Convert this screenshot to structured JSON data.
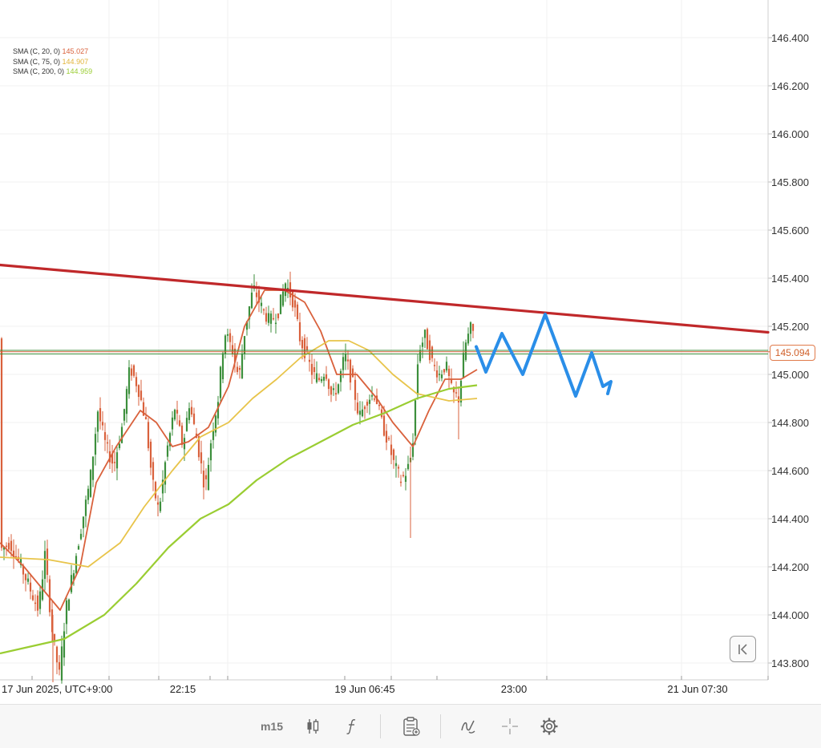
{
  "chart_data": {
    "type": "line",
    "title": "",
    "timeframe": "m15",
    "instrument_price": "145.094",
    "ylim": [
      143.75,
      146.55
    ],
    "y_ticks": [
      "146.400",
      "146.200",
      "146.000",
      "145.800",
      "145.600",
      "145.400",
      "145.200",
      "145.000",
      "144.800",
      "144.600",
      "144.400",
      "144.200",
      "144.000",
      "143.800"
    ],
    "x_labels": [
      "17 Jun 2025, UTC+9:00",
      "22:15",
      "19 Jun 06:45",
      "23:00",
      "21 Jun 07:30"
    ],
    "grid": true,
    "legend": [
      {
        "label": "SMA (C, 20, 0)",
        "value": "145.027",
        "color": "#d9613c"
      },
      {
        "label": "SMA (C, 75, 0)",
        "value": "144.907",
        "color": "#e8c44a"
      },
      {
        "label": "SMA (C, 200, 0)",
        "value": "144.959",
        "color": "#9acd32"
      }
    ],
    "series": [
      {
        "kind": "sma20",
        "color": "#d9613c",
        "points": [
          [
            0,
            144.3
          ],
          [
            30,
            144.2
          ],
          [
            55,
            144.1
          ],
          [
            75,
            144.02
          ],
          [
            100,
            144.2
          ],
          [
            120,
            144.55
          ],
          [
            145,
            144.7
          ],
          [
            175,
            144.85
          ],
          [
            195,
            144.8
          ],
          [
            215,
            144.7
          ],
          [
            235,
            144.72
          ],
          [
            260,
            144.78
          ],
          [
            285,
            144.95
          ],
          [
            305,
            145.2
          ],
          [
            330,
            145.35
          ],
          [
            355,
            145.35
          ],
          [
            380,
            145.3
          ],
          [
            400,
            145.18
          ],
          [
            420,
            145.0
          ],
          [
            445,
            145.0
          ],
          [
            470,
            144.9
          ],
          [
            490,
            144.8
          ],
          [
            515,
            144.7
          ],
          [
            535,
            144.85
          ],
          [
            555,
            144.98
          ],
          [
            575,
            144.98
          ],
          [
            595,
            145.02
          ]
        ]
      },
      {
        "kind": "sma75",
        "color": "#e8c44a",
        "points": [
          [
            0,
            144.24
          ],
          [
            60,
            144.23
          ],
          [
            110,
            144.2
          ],
          [
            150,
            144.3
          ],
          [
            180,
            144.45
          ],
          [
            215,
            144.6
          ],
          [
            250,
            144.74
          ],
          [
            285,
            144.8
          ],
          [
            315,
            144.9
          ],
          [
            345,
            144.98
          ],
          [
            375,
            145.07
          ],
          [
            410,
            145.14
          ],
          [
            435,
            145.14
          ],
          [
            460,
            145.1
          ],
          [
            490,
            145.0
          ],
          [
            520,
            144.92
          ],
          [
            560,
            144.89
          ],
          [
            595,
            144.9
          ]
        ]
      },
      {
        "kind": "sma200",
        "color": "#9acd32",
        "points": [
          [
            0,
            143.84
          ],
          [
            40,
            143.87
          ],
          [
            80,
            143.9
          ],
          [
            130,
            144.0
          ],
          [
            170,
            144.13
          ],
          [
            210,
            144.28
          ],
          [
            250,
            144.4
          ],
          [
            285,
            144.46
          ],
          [
            320,
            144.56
          ],
          [
            360,
            144.65
          ],
          [
            400,
            144.72
          ],
          [
            440,
            144.79
          ],
          [
            480,
            144.84
          ],
          [
            520,
            144.9
          ],
          [
            560,
            144.94
          ],
          [
            595,
            144.955
          ]
        ]
      }
    ],
    "price_path": [
      [
        0,
        144.27
      ],
      [
        12,
        144.3
      ],
      [
        24,
        144.22
      ],
      [
        36,
        144.12
      ],
      [
        48,
        144.02
      ],
      [
        56,
        144.25
      ],
      [
        66,
        143.9
      ],
      [
        74,
        143.75
      ],
      [
        82,
        144.02
      ],
      [
        92,
        144.2
      ],
      [
        102,
        144.38
      ],
      [
        112,
        144.55
      ],
      [
        122,
        144.85
      ],
      [
        132,
        144.7
      ],
      [
        142,
        144.62
      ],
      [
        152,
        144.78
      ],
      [
        162,
        145.03
      ],
      [
        172,
        144.95
      ],
      [
        182,
        144.8
      ],
      [
        190,
        144.55
      ],
      [
        198,
        144.43
      ],
      [
        208,
        144.68
      ],
      [
        218,
        144.86
      ],
      [
        228,
        144.7
      ],
      [
        236,
        144.88
      ],
      [
        246,
        144.72
      ],
      [
        256,
        144.52
      ],
      [
        264,
        144.75
      ],
      [
        272,
        144.9
      ],
      [
        280,
        145.18
      ],
      [
        290,
        145.1
      ],
      [
        298,
        144.98
      ],
      [
        306,
        145.2
      ],
      [
        316,
        145.36
      ],
      [
        326,
        145.28
      ],
      [
        336,
        145.22
      ],
      [
        346,
        145.25
      ],
      [
        356,
        145.38
      ],
      [
        366,
        145.3
      ],
      [
        374,
        145.15
      ],
      [
        382,
        145.08
      ],
      [
        390,
        145.0
      ],
      [
        398,
        144.98
      ],
      [
        406,
        145.02
      ],
      [
        414,
        144.9
      ],
      [
        422,
        144.96
      ],
      [
        430,
        145.08
      ],
      [
        440,
        144.96
      ],
      [
        448,
        144.82
      ],
      [
        458,
        144.9
      ],
      [
        468,
        144.92
      ],
      [
        476,
        144.8
      ],
      [
        484,
        144.72
      ],
      [
        492,
        144.62
      ],
      [
        500,
        144.56
      ],
      [
        508,
        144.6
      ],
      [
        514,
        144.68
      ],
      [
        522,
        145.1
      ],
      [
        530,
        145.16
      ],
      [
        540,
        145.04
      ],
      [
        548,
        145.0
      ],
      [
        556,
        145.04
      ],
      [
        564,
        144.92
      ],
      [
        572,
        144.9
      ],
      [
        580,
        145.12
      ],
      [
        588,
        145.2
      ],
      [
        592,
        145.15
      ]
    ],
    "resistance_line": [
      [
        0,
        145.455
      ],
      [
        958,
        145.175
      ]
    ],
    "hlines": [
      {
        "y": 145.1,
        "color": "#3c8f3c"
      },
      {
        "y": 145.094,
        "color": "#d9613c"
      },
      {
        "y": 145.085,
        "color": "#3c8f3c"
      }
    ],
    "forecast_path": [
      [
        594,
        145.115
      ],
      [
        606,
        145.01
      ],
      [
        626,
        145.17
      ],
      [
        652,
        145.0
      ],
      [
        680,
        145.25
      ],
      [
        718,
        144.91
      ],
      [
        738,
        145.09
      ],
      [
        752,
        144.95
      ],
      [
        762,
        144.97
      ],
      [
        758,
        144.92
      ]
    ]
  },
  "toolbar": {
    "timeframe_label": "m15",
    "indicators_icon": "function-icon",
    "candles_icon": "candlestick-icon",
    "notes_icon": "clipboard-icon",
    "draw_icon": "pen-icon",
    "crosshair_icon": "crosshair-icon",
    "settings_icon": "gear-icon"
  },
  "collapse": {
    "icon": "collapse-left-icon"
  },
  "colors": {
    "up_candle": "#3c8f3c",
    "down_candle": "#d9613c",
    "resistance": "#c0282a",
    "forecast": "#2a8ee8"
  }
}
